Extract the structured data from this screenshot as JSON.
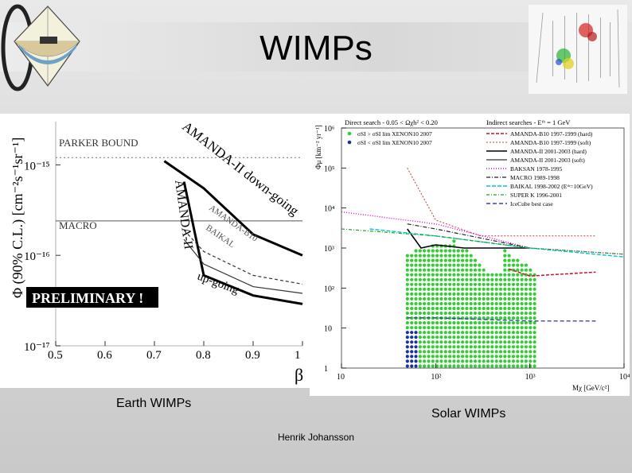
{
  "title": "WIMPs",
  "captions": {
    "earth": "Earth WIMPs",
    "solar": "Solar WIMPs"
  },
  "footer": "Henrik Johansson",
  "figure_left": {
    "ylabel": "Φ (90% C.L.) [cm⁻²s⁻¹sr⁻¹]",
    "xlabel": "β",
    "x_ticks": [
      "0.5",
      "0.6",
      "0.7",
      "0.8",
      "0.9",
      "1"
    ],
    "y_ticks": [
      "10⁻¹⁵",
      "10⁻¹⁶",
      "10⁻¹⁷"
    ],
    "labels": {
      "parker": "PARKER BOUND",
      "macro": "MACRO",
      "amanda_down": "AMANDA-II down-going",
      "amanda_up": "AMANDA-II",
      "up_going": "up-going",
      "amanda_b10": "AMANDA-B10",
      "baikal": "BAIKAL",
      "preliminary": "PRELIMINARY !"
    }
  },
  "figure_right": {
    "header_left": "Direct search - 0.05 < Ωχh² < 0.20",
    "header_right": "Indirect searches - Eᵗʰ = 1 GeV",
    "ylabel": "Φμ [km⁻² yr⁻¹]",
    "xlabel": "Mχ [GeV/c²]",
    "x_ticks": [
      "10",
      "10²",
      "10³",
      "10⁴"
    ],
    "y_ticks": [
      "10⁶",
      "10⁵",
      "10⁴",
      "10³",
      "10²",
      "10",
      "1"
    ],
    "legend_left": [
      "σSI > σSI lim XENON10 2007",
      "σSI < σSI lim XENON10 2007"
    ],
    "legend_right": [
      "AMANDA-B10 1997-1999 (hard)",
      "AMANDA-B10 1997-1999 (soft)",
      "AMANDA-II 2001-2003 (hard)",
      "AMANDA-II 2001-2003 (soft)",
      "BAKSAN 1978-1995",
      "MACRO 1989-1998",
      "BAIKAL 1998-2002 (Eᵗʰ=10GeV)",
      "SUPER K 1996-2001",
      "IceCube best case"
    ]
  },
  "chart_data": [
    {
      "type": "line",
      "title": "",
      "xlabel": "β",
      "ylabel": "Φ (90% C.L.) [cm⁻²s⁻¹sr⁻¹]",
      "xlim": [
        0.5,
        1.0
      ],
      "ylim": [
        1e-17,
        3e-15
      ],
      "yscale": "log",
      "series": [
        {
          "name": "PARKER BOUND",
          "x": [
            0.5,
            1.0
          ],
          "y": [
            1.2e-15,
            1.2e-15
          ]
        },
        {
          "name": "MACRO",
          "x": [
            0.5,
            1.0
          ],
          "y": [
            2.4e-16,
            2.4e-16
          ]
        },
        {
          "name": "AMANDA-II down-going",
          "x": [
            0.72,
            0.8,
            0.9,
            1.0
          ],
          "y": [
            1.1e-15,
            5.5e-16,
            1.7e-16,
            1e-16
          ]
        },
        {
          "name": "AMANDA-II up-going",
          "x": [
            0.76,
            0.8,
            0.9,
            1.0
          ],
          "y": [
            6.5e-16,
            6e-17,
            3.6e-17,
            2.9e-17
          ]
        },
        {
          "name": "AMANDA-B10",
          "x": [
            0.76,
            0.8,
            0.9,
            1.0
          ],
          "y": [
            1.9e-16,
            1.1e-16,
            6e-17,
            4.8e-17
          ]
        },
        {
          "name": "BAIKAL",
          "x": [
            0.76,
            0.8,
            0.9,
            1.0
          ],
          "y": [
            1.5e-16,
            8e-17,
            4.5e-17,
            3.8e-17
          ]
        }
      ]
    },
    {
      "type": "line",
      "title": "",
      "xlabel": "Mχ [GeV/c²]",
      "ylabel": "Φμ [km⁻² yr⁻¹]",
      "xlim": [
        10,
        10000
      ],
      "ylim": [
        1,
        1000000
      ],
      "xscale": "log",
      "yscale": "log",
      "series": [
        {
          "name": "AMANDA-B10 1997-1999 (hard)",
          "x": [
            600,
            1000,
            5000
          ],
          "y": [
            300,
            200,
            250
          ]
        },
        {
          "name": "AMANDA-B10 1997-1999 (soft)",
          "x": [
            50,
            100,
            300,
            1000,
            5000
          ],
          "y": [
            100000,
            5000,
            2000,
            2000,
            2000
          ]
        },
        {
          "name": "AMANDA-II 2001-2003 (hard)",
          "x": [
            50,
            70,
            100,
            200,
            500,
            1000
          ],
          "y": [
            3000,
            1000,
            1200,
            1000,
            1000,
            1000
          ]
        },
        {
          "name": "BAKSAN 1978-1995",
          "x": [
            10,
            100,
            1000,
            10000
          ],
          "y": [
            8000,
            4000,
            1000,
            700
          ]
        },
        {
          "name": "MACRO 1989-1998",
          "x": [
            50,
            100,
            1000
          ],
          "y": [
            4000,
            3000,
            1000
          ]
        },
        {
          "name": "BAIKAL 1998-2002 (Eᵗʰ=10GeV)",
          "x": [
            20,
            100,
            1000,
            10000
          ],
          "y": [
            3000,
            2000,
            1000,
            600
          ]
        },
        {
          "name": "SUPER K 1996-2001",
          "x": [
            10,
            100,
            1000,
            10000
          ],
          "y": [
            3000,
            2000,
            1000,
            700
          ]
        },
        {
          "name": "IceCube best case",
          "x": [
            50,
            100,
            1000,
            5000
          ],
          "y": [
            18,
            18,
            15,
            15
          ]
        }
      ]
    }
  ],
  "colors": {
    "title": "#000000",
    "amanda_b10_hard": "#c8102e",
    "amanda_b10_soft": "#d6333a",
    "baksan": "#e000e0",
    "baikal": "#00c8c8",
    "superk": "#20a020",
    "icecube": "#4040a0",
    "xenon_points": "#33cc33"
  },
  "icons": {
    "logo": "amanda-detector-logo",
    "event_display": "neutrino-event-display"
  }
}
